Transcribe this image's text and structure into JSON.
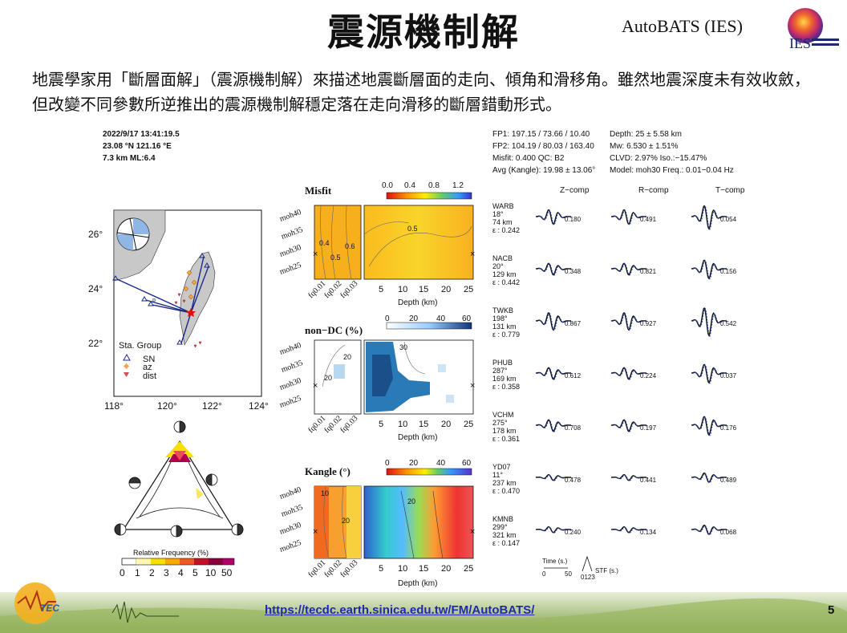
{
  "slide": {
    "title": "震源機制解",
    "brand": "AutoBATS (IES)",
    "logo_text": "IES",
    "description": "地震學家用「斷層面解」（震源機制解）來描述地震斷層面的走向、傾角和滑移角。雖然地震深度未有效收斂，但改變不同參數所逆推出的震源機制解穩定落在走向滑移的斷層錯動形式。",
    "link": "https://tecdc.earth.sinica.edu.tw/FM/AutoBATS/",
    "page_number": "5",
    "footer_logo_text": "TEC"
  },
  "event": {
    "datetime": "2022/9/17   13:41:19.5",
    "location": "23.08 °N  121.16 °E",
    "depth_mag": "7.3 km   ML:6.4"
  },
  "solution": {
    "fp1": "FP1: 197.15 / 73.66 / 10.40",
    "fp2": "FP2: 104.19 / 80.03 / 163.40",
    "misfit_qc": "Misfit: 0.400     QC: B2",
    "kangle": "Avg (Kangle): 19.98 ± 13.06°",
    "depth": "Depth: 25 ± 5.58 km",
    "mw": "Mw: 6.530 ± 1.51%",
    "clvd": "CLVD: 2.97%   Iso.:−15.47%",
    "model": "Model: moh30   Freq.: 0.01−0.04 Hz"
  },
  "map": {
    "lon_ticks": [
      "118°",
      "120°",
      "122°",
      "124°"
    ],
    "lat_ticks": [
      "26°",
      "24°",
      "22°"
    ],
    "legend_title": "Sta. Group",
    "legend_items": [
      "SN",
      "az",
      "dist"
    ]
  },
  "triangle": {
    "colorbar_title": "Relative Frequency (%)",
    "colorbar_ticks": [
      "0",
      "1",
      "2",
      "3",
      "4",
      "5",
      "10",
      "50"
    ]
  },
  "grids": {
    "models": [
      "moh40",
      "moh35",
      "moh30",
      "moh25"
    ],
    "freqs": [
      "fq0.01",
      "fq0.02",
      "fq0.03"
    ],
    "depth_ticks": [
      "5",
      "10",
      "15",
      "20",
      "25"
    ],
    "depth_label": "Depth (km)",
    "panels": [
      {
        "title": "Misfit",
        "cbar_ticks": [
          "0.0",
          "0.4",
          "0.8",
          "1.2"
        ],
        "contours": [
          "0.4",
          "0.5",
          "0.6",
          "0.5"
        ]
      },
      {
        "title": "non−DC (%)",
        "cbar_ticks": [
          "0",
          "20",
          "40",
          "60"
        ],
        "contours": [
          "20",
          "20",
          "30"
        ]
      },
      {
        "title": "Kangle (°)",
        "cbar_ticks": [
          "0",
          "20",
          "40",
          "60"
        ],
        "contours": [
          "10",
          "20",
          "20"
        ]
      }
    ]
  },
  "waveforms": {
    "components": [
      "Z−comp",
      "R−comp",
      "T−comp"
    ],
    "stations": [
      {
        "name": "WARB",
        "az": "18°",
        "dist": "74 km",
        "e": "ε : 0.242",
        "amps": [
          "0.180",
          "0.491",
          "0.054"
        ]
      },
      {
        "name": "NACB",
        "az": "20°",
        "dist": "129 km",
        "e": "ε : 0.442",
        "amps": [
          "0.348",
          "0.821",
          "0.156"
        ]
      },
      {
        "name": "TWKB",
        "az": "198°",
        "dist": "131 km",
        "e": "ε : 0.779",
        "amps": [
          "0.867",
          "0.927",
          "0.542"
        ]
      },
      {
        "name": "PHUB",
        "az": "287°",
        "dist": "169 km",
        "e": "ε : 0.358",
        "amps": [
          "0.612",
          "0.224",
          "0.037"
        ]
      },
      {
        "name": "VCHM",
        "az": "275°",
        "dist": "178 km",
        "e": "ε : 0.361",
        "amps": [
          "0.708",
          "0.197",
          "0.176"
        ]
      },
      {
        "name": "YD07",
        "az": "11°",
        "dist": "237 km",
        "e": "ε : 0.470",
        "amps": [
          "0.478",
          "0.441",
          "0.489"
        ]
      },
      {
        "name": "KMNB",
        "az": "299°",
        "dist": "321 km",
        "e": "ε : 0.147",
        "amps": [
          "0.240",
          "0.134",
          "0.068"
        ]
      }
    ],
    "time_label": "Time (s.)",
    "time_ticks": [
      "0",
      "50"
    ],
    "stf_label": "STF (s.)",
    "stf_ticks": "0123"
  }
}
